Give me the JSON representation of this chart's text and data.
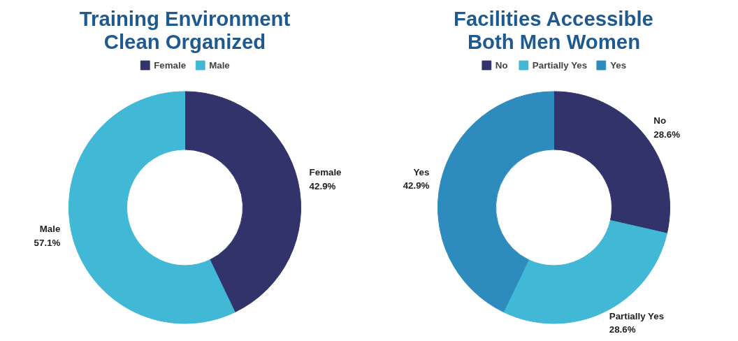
{
  "chart_data": [
    {
      "type": "donut",
      "title": "Training Environment Clean Organized",
      "categories": [
        "Female",
        "Male"
      ],
      "values": [
        42.9,
        57.1
      ],
      "value_labels": [
        "42.9%",
        "57.1%"
      ],
      "colors": [
        "#32336a",
        "#41b8d5"
      ],
      "legend": "top"
    },
    {
      "type": "donut",
      "title": "Facilities Accessible Both Men Women",
      "categories": [
        "No",
        "Partially Yes",
        "Yes"
      ],
      "values": [
        28.6,
        28.6,
        42.9
      ],
      "value_labels": [
        "28.6%",
        "28.6%",
        "42.9%"
      ],
      "colors": [
        "#32336a",
        "#41b8d5",
        "#2e8bbd"
      ],
      "legend": "top"
    }
  ]
}
